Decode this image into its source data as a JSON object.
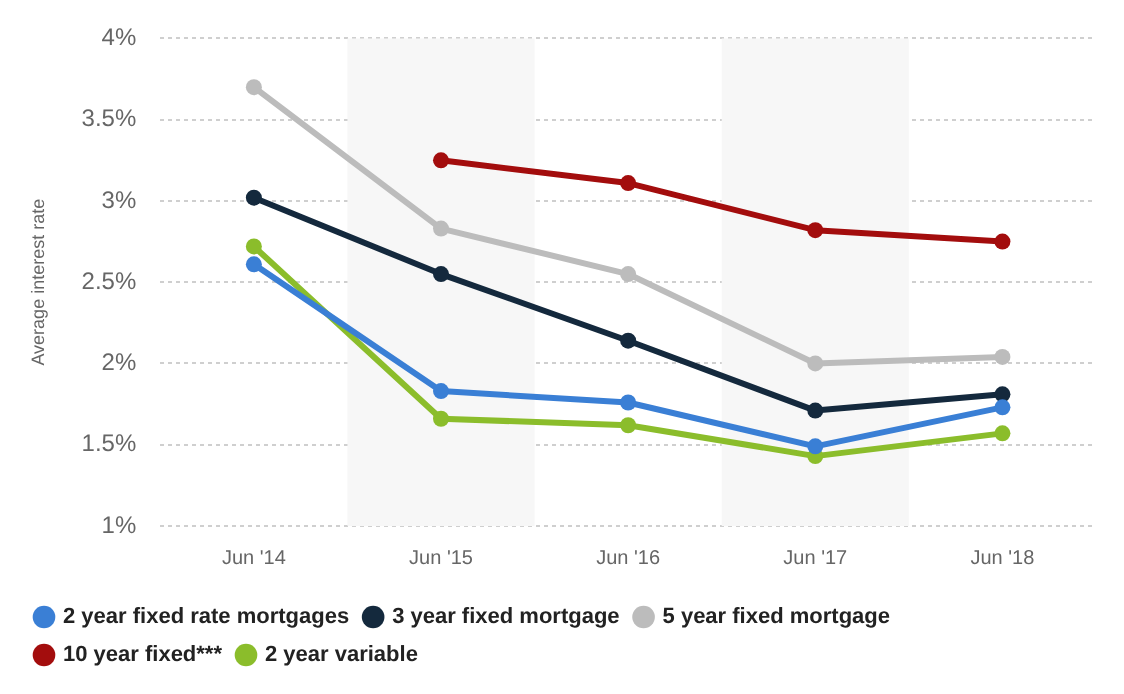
{
  "chart_data": {
    "type": "line",
    "ylabel": "Average interest rate",
    "categories": [
      "Jun '14",
      "Jun '15",
      "Jun '16",
      "Jun '17",
      "Jun '18"
    ],
    "series": [
      {
        "name": "2 year fixed rate mortgages",
        "color": "#3a7fd5",
        "values": [
          2.61,
          1.83,
          1.76,
          1.49,
          1.73
        ]
      },
      {
        "name": "3 year fixed mortgage",
        "color": "#14293d",
        "values": [
          3.02,
          2.55,
          2.14,
          1.71,
          1.81
        ]
      },
      {
        "name": "5 year fixed mortgage",
        "color": "#bcbcbc",
        "values": [
          3.7,
          2.83,
          2.55,
          2.0,
          2.04
        ]
      },
      {
        "name": "10 year fixed***",
        "color": "#a30d0d",
        "values": [
          null,
          3.25,
          3.11,
          2.82,
          2.75
        ]
      },
      {
        "name": "2 year variable",
        "color": "#8bbd2b",
        "values": [
          2.72,
          1.66,
          1.62,
          1.43,
          1.57
        ]
      }
    ],
    "ylim": [
      1,
      4
    ],
    "yticks": [
      {
        "value": 1,
        "label": "1%"
      },
      {
        "value": 1.5,
        "label": "1.5%"
      },
      {
        "value": 2,
        "label": "2%"
      },
      {
        "value": 2.5,
        "label": "2.5%"
      },
      {
        "value": 3,
        "label": "3%"
      },
      {
        "value": 3.5,
        "label": "3.5%"
      },
      {
        "value": 4,
        "label": "4%"
      }
    ],
    "bands": [
      {
        "axis": "x",
        "from": "Jun '15",
        "to": "Jun '15",
        "color": "#f7f7f7"
      },
      {
        "axis": "x",
        "from": "Jun '17",
        "to": "Jun '17",
        "color": "#f7f7f7"
      }
    ],
    "grid": "y",
    "legend": "bottom",
    "marker": "circle",
    "line_style": "solid"
  }
}
